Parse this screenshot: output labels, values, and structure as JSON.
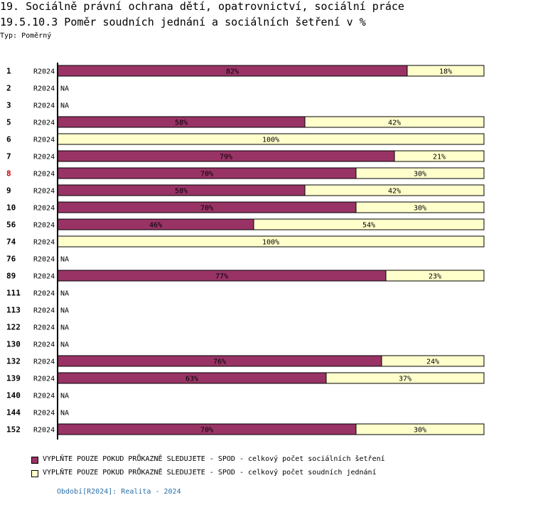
{
  "header": {
    "title_line1": "19. Sociálně právní ochrana dětí, opatrovnictví, sociální práce",
    "title_line2": "19.5.10.3 Poměr soudních jednání a sociálních šetření v %",
    "type_label": "Typ: Poměrný"
  },
  "colors": {
    "series1": "#993366",
    "series2": "#ffffcc",
    "highlight_row_label": "#cc0000"
  },
  "chart_data": {
    "type": "bar",
    "orientation": "horizontal",
    "stacked": true,
    "percent": true,
    "title": "19.5.10.3 Poměr soudních jednání a sociálních šetření v %",
    "categories": [
      "1",
      "2",
      "3",
      "5",
      "6",
      "7",
      "8",
      "9",
      "10",
      "56",
      "74",
      "76",
      "89",
      "111",
      "113",
      "122",
      "130",
      "132",
      "139",
      "140",
      "144",
      "152"
    ],
    "period_labels": [
      "R2024",
      "R2024",
      "R2024",
      "R2024",
      "R2024",
      "R2024",
      "R2024",
      "R2024",
      "R2024",
      "R2024",
      "R2024",
      "R2024",
      "R2024",
      "R2024",
      "R2024",
      "R2024",
      "R2024",
      "R2024",
      "R2024",
      "R2024",
      "R2024",
      "R2024"
    ],
    "highlighted_category": "8",
    "na_label": "NA",
    "series": [
      {
        "name": "VYPLŇTE POUZE POKUD PRŮKAZNĚ SLEDUJETE - SPOD - celkový počet sociálních šetření",
        "values": [
          82,
          null,
          null,
          58,
          0,
          79,
          70,
          58,
          70,
          46,
          0,
          null,
          77,
          null,
          null,
          null,
          null,
          76,
          63,
          null,
          null,
          70
        ]
      },
      {
        "name": "VYPLŇTE POUZE POKUD PRŮKAZNĚ SLEDUJETE - SPOD - celkový počet soudních jednání",
        "values": [
          18,
          null,
          null,
          42,
          100,
          21,
          30,
          42,
          30,
          54,
          100,
          null,
          23,
          null,
          null,
          null,
          null,
          24,
          37,
          null,
          null,
          30
        ]
      }
    ],
    "xlim": [
      0,
      100
    ]
  },
  "footer": {
    "period": "Období[R2024]: Realita - 2024"
  }
}
